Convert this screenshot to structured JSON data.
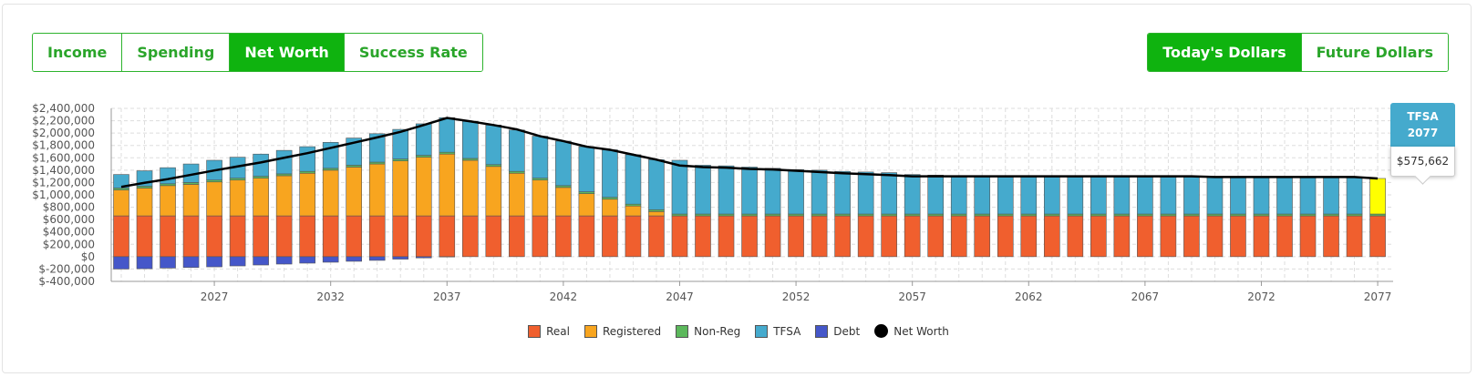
{
  "view_tabs": {
    "left": [
      {
        "label": "Income",
        "active": false
      },
      {
        "label": "Spending",
        "active": false
      },
      {
        "label": "Net Worth",
        "active": true
      },
      {
        "label": "Success Rate",
        "active": false
      }
    ],
    "right": [
      {
        "label": "Today's Dollars",
        "active": true
      },
      {
        "label": "Future Dollars",
        "active": false
      }
    ]
  },
  "tooltip": {
    "series": "TFSA",
    "year": "2077",
    "value": "$575,662"
  },
  "colors": {
    "Real": "#f05f2e",
    "Registered": "#f8a51f",
    "Non-Reg": "#5cb85c",
    "TFSA": "#45aacd",
    "Debt": "#4557c9",
    "Net Worth": "#000000",
    "highlight": "#ffff00"
  },
  "chart_data": {
    "type": "bar",
    "stacked": true,
    "x": [
      2023,
      2024,
      2025,
      2026,
      2027,
      2028,
      2029,
      2030,
      2031,
      2032,
      2033,
      2034,
      2035,
      2036,
      2037,
      2038,
      2039,
      2040,
      2041,
      2042,
      2043,
      2044,
      2045,
      2046,
      2047,
      2048,
      2049,
      2050,
      2051,
      2052,
      2053,
      2054,
      2055,
      2056,
      2057,
      2058,
      2059,
      2060,
      2061,
      2062,
      2063,
      2064,
      2065,
      2066,
      2067,
      2068,
      2069,
      2070,
      2071,
      2072,
      2073,
      2074,
      2075,
      2076,
      2077
    ],
    "x_tick_labels": [
      "2027",
      "2032",
      "2037",
      "2042",
      "2047",
      "2052",
      "2057",
      "2062",
      "2067",
      "2072",
      "2077"
    ],
    "y_tick_labels": [
      "$2,400,000",
      "$2,200,000",
      "$2,000,000",
      "$1,800,000",
      "$1,600,000",
      "$1,400,000",
      "$1,200,000",
      "$1,000,000",
      "$800,000",
      "$600,000",
      "$400,000",
      "$200,000",
      "$0",
      "$-200,000",
      "$-400,000"
    ],
    "ylim": [
      -400000,
      2400000
    ],
    "grid": true,
    "legend_position": "bottom",
    "highlight_index": 54,
    "series": [
      {
        "name": "Real",
        "values": [
          660000,
          660000,
          660000,
          660000,
          660000,
          660000,
          660000,
          660000,
          660000,
          660000,
          660000,
          660000,
          660000,
          660000,
          660000,
          660000,
          660000,
          660000,
          660000,
          660000,
          660000,
          660000,
          660000,
          660000,
          660000,
          660000,
          660000,
          660000,
          660000,
          660000,
          660000,
          660000,
          660000,
          660000,
          660000,
          660000,
          660000,
          660000,
          660000,
          660000,
          660000,
          660000,
          660000,
          660000,
          660000,
          660000,
          660000,
          660000,
          660000,
          660000,
          660000,
          660000,
          660000,
          660000,
          660000
        ]
      },
      {
        "name": "Registered",
        "values": [
          420000,
          450000,
          490000,
          510000,
          550000,
          580000,
          610000,
          650000,
          690000,
          740000,
          790000,
          840000,
          890000,
          950000,
          1000000,
          900000,
          800000,
          690000,
          580000,
          460000,
          360000,
          270000,
          160000,
          70000,
          0,
          0,
          0,
          0,
          0,
          0,
          0,
          0,
          0,
          0,
          0,
          0,
          0,
          0,
          0,
          0,
          0,
          0,
          0,
          0,
          0,
          0,
          0,
          0,
          0,
          0,
          0,
          0,
          0,
          0,
          0
        ]
      },
      {
        "name": "Non-Reg",
        "values": [
          30000,
          30000,
          30000,
          30000,
          30000,
          30000,
          30000,
          30000,
          30000,
          30000,
          30000,
          30000,
          30000,
          30000,
          30000,
          30000,
          30000,
          30000,
          30000,
          30000,
          30000,
          30000,
          30000,
          30000,
          30000,
          30000,
          30000,
          30000,
          30000,
          30000,
          30000,
          30000,
          30000,
          30000,
          30000,
          30000,
          30000,
          30000,
          30000,
          30000,
          30000,
          30000,
          30000,
          30000,
          30000,
          30000,
          30000,
          30000,
          30000,
          30000,
          30000,
          30000,
          30000,
          30000,
          30000
        ]
      },
      {
        "name": "TFSA",
        "values": [
          220000,
          250000,
          260000,
          300000,
          320000,
          340000,
          360000,
          380000,
          400000,
          420000,
          440000,
          460000,
          480000,
          510000,
          560000,
          600000,
          640000,
          670000,
          680000,
          720000,
          730000,
          770000,
          800000,
          810000,
          870000,
          790000,
          780000,
          760000,
          740000,
          720000,
          710000,
          690000,
          680000,
          670000,
          640000,
          630000,
          620000,
          610000,
          600000,
          610000,
          610000,
          610000,
          610000,
          610000,
          610000,
          610000,
          610000,
          600000,
          600000,
          600000,
          600000,
          600000,
          600000,
          600000,
          575662
        ]
      },
      {
        "name": "Debt",
        "values": [
          -200000,
          -195000,
          -185000,
          -175000,
          -165000,
          -150000,
          -135000,
          -120000,
          -105000,
          -90000,
          -75000,
          -60000,
          -40000,
          -20000,
          -5000,
          0,
          0,
          0,
          0,
          0,
          0,
          0,
          0,
          0,
          0,
          0,
          0,
          0,
          0,
          0,
          0,
          0,
          0,
          0,
          0,
          0,
          0,
          0,
          0,
          0,
          0,
          0,
          0,
          0,
          0,
          0,
          0,
          0,
          0,
          0,
          0,
          0,
          0,
          0,
          0
        ]
      },
      {
        "name": "Net Worth",
        "type": "line",
        "values": [
          1130000,
          1195000,
          1255000,
          1325000,
          1395000,
          1460000,
          1525000,
          1600000,
          1675000,
          1760000,
          1845000,
          1930000,
          2020000,
          2130000,
          2245000,
          2190000,
          2130000,
          2060000,
          1950000,
          1870000,
          1780000,
          1730000,
          1650000,
          1570000,
          1475000,
          1450000,
          1440000,
          1420000,
          1410000,
          1390000,
          1370000,
          1350000,
          1335000,
          1320000,
          1300000,
          1300000,
          1300000,
          1300000,
          1300000,
          1300000,
          1300000,
          1300000,
          1300000,
          1300000,
          1300000,
          1300000,
          1300000,
          1290000,
          1290000,
          1290000,
          1290000,
          1290000,
          1290000,
          1290000,
          1265662
        ]
      }
    ]
  }
}
